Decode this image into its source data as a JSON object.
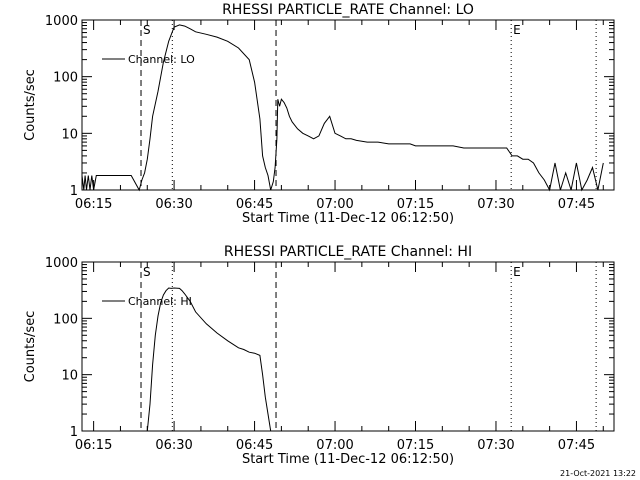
{
  "footer_timestamp": "21-Oct-2021 13:22",
  "chart_data": [
    {
      "type": "line",
      "title": "RHESSI PARTICLE_RATE Channel: LO",
      "xlabel": "Start Time (11-Dec-12 06:12:50)",
      "ylabel": "Counts/sec",
      "yscale": "log",
      "ylim": [
        1,
        1000
      ],
      "xlim": [
        "06:12:50",
        "07:52:00"
      ],
      "x_ticks": [
        "06:15",
        "06:30",
        "06:45",
        "07:00",
        "07:15",
        "07:30",
        "07:45"
      ],
      "y_ticks": [
        "1",
        "10",
        "100",
        "1000"
      ],
      "legend": {
        "position": "top-left"
      },
      "series": [
        {
          "name": "Channel: LO",
          "x": [
            "06:12:50",
            "06:13:10",
            "06:13:25",
            "06:13:40",
            "06:14:00",
            "06:14:20",
            "06:14:40",
            "06:15:00",
            "06:15:30",
            "06:16:00",
            "06:17:00",
            "06:18:00",
            "06:19:00",
            "06:20:00",
            "06:21:00",
            "06:22:00",
            "06:23:30",
            "06:24:00",
            "06:24:30",
            "06:25:00",
            "06:25:30",
            "06:26:00",
            "06:27:00",
            "06:28:00",
            "06:29:00",
            "06:30:00",
            "06:31:00",
            "06:32:00",
            "06:33:00",
            "06:34:00",
            "06:36:00",
            "06:38:00",
            "06:40:00",
            "06:42:00",
            "06:44:00",
            "06:45:00",
            "06:46:00",
            "06:46:30",
            "06:47:00",
            "06:47:30",
            "06:48:00",
            "06:48:30",
            "06:48:50",
            "06:49:10",
            "06:49:20",
            "06:49:40",
            "06:50:00",
            "06:50:30",
            "06:51:00",
            "06:51:30",
            "06:52:00",
            "06:53:00",
            "06:54:00",
            "06:55:00",
            "06:56:00",
            "06:57:00",
            "06:58:00",
            "06:59:00",
            "07:00:00",
            "07:01:00",
            "07:02:00",
            "07:03:00",
            "07:04:00",
            "07:06:00",
            "07:08:00",
            "07:10:00",
            "07:12:00",
            "07:14:00",
            "07:15:00",
            "07:16:00",
            "07:18:00",
            "07:20:00",
            "07:22:00",
            "07:24:00",
            "07:26:00",
            "07:28:00",
            "07:30:00",
            "07:32:00",
            "07:33:00",
            "07:34:00",
            "07:35:00",
            "07:36:00",
            "07:37:00",
            "07:38:00",
            "07:39:00",
            "07:40:00",
            "07:41:00",
            "07:42:00",
            "07:43:00",
            "07:44:00",
            "07:45:00",
            "07:46:00",
            "07:47:00",
            "07:48:00",
            "07:49:00",
            "07:50:00"
          ],
          "y": [
            1.8,
            1,
            1.8,
            1,
            1.8,
            1,
            1.8,
            1,
            1.8,
            1.8,
            1.8,
            1.8,
            1.8,
            1.8,
            1.8,
            1.8,
            1,
            1.5,
            2,
            3.5,
            8,
            20,
            55,
            180,
            420,
            750,
            820,
            780,
            700,
            620,
            560,
            500,
            420,
            320,
            200,
            80,
            18,
            4,
            2.5,
            1.8,
            1,
            1.4,
            2.5,
            8,
            40,
            30,
            40,
            35,
            28,
            20,
            16,
            12,
            10,
            9,
            8,
            9,
            15,
            20,
            10,
            9,
            8,
            8,
            7.5,
            7,
            7,
            6.5,
            6.5,
            6.5,
            6,
            6,
            6,
            6,
            6,
            5.5,
            5.5,
            5.5,
            5.5,
            5.5,
            4,
            4,
            3.5,
            3.5,
            3,
            2,
            1.5,
            1,
            3,
            1,
            2,
            1,
            3,
            1,
            1.5,
            2.5,
            1,
            3
          ]
        }
      ],
      "markers": [
        {
          "time": "06:23:50",
          "style": "dashed",
          "label": "S"
        },
        {
          "time": "06:29:40",
          "style": "dotted",
          "label": ""
        },
        {
          "time": "06:49:00",
          "style": "dashed",
          "label": ""
        },
        {
          "time": "07:32:50",
          "style": "dotted",
          "label": "E"
        },
        {
          "time": "07:48:40",
          "style": "dotted",
          "label": ""
        }
      ]
    },
    {
      "type": "line",
      "title": "RHESSI PARTICLE_RATE Channel: HI",
      "xlabel": "Start Time (11-Dec-12 06:12:50)",
      "ylabel": "Counts/sec",
      "yscale": "log",
      "ylim": [
        1,
        1000
      ],
      "xlim": [
        "06:12:50",
        "07:52:00"
      ],
      "x_ticks": [
        "06:15",
        "06:30",
        "06:45",
        "07:00",
        "07:15",
        "07:30",
        "07:45"
      ],
      "y_ticks": [
        "1",
        "10",
        "100",
        "1000"
      ],
      "legend": {
        "position": "top-left"
      },
      "series": [
        {
          "name": "Channel: HI",
          "x": [
            "06:25:00",
            "06:25:30",
            "06:26:00",
            "06:26:30",
            "06:27:00",
            "06:27:30",
            "06:28:00",
            "06:28:30",
            "06:29:00",
            "06:29:30",
            "06:30:00",
            "06:31:00",
            "06:31:30",
            "06:32:00",
            "06:33:00",
            "06:34:00",
            "06:36:00",
            "06:38:00",
            "06:40:00",
            "06:42:00",
            "06:43:00",
            "06:44:00",
            "06:45:00",
            "06:46:00",
            "06:46:30",
            "06:47:00",
            "06:47:30",
            "06:48:00"
          ],
          "y": [
            1,
            3,
            15,
            50,
            110,
            190,
            260,
            310,
            345,
            340,
            345,
            340,
            310,
            270,
            200,
            130,
            80,
            55,
            40,
            30,
            28,
            25,
            24,
            22,
            10,
            4,
            2,
            1
          ]
        }
      ],
      "markers": [
        {
          "time": "06:23:50",
          "style": "dashed",
          "label": "S"
        },
        {
          "time": "06:29:40",
          "style": "dotted",
          "label": ""
        },
        {
          "time": "06:49:00",
          "style": "dashed",
          "label": ""
        },
        {
          "time": "07:32:50",
          "style": "dotted",
          "label": "E"
        },
        {
          "time": "07:48:40",
          "style": "dotted",
          "label": ""
        }
      ]
    }
  ]
}
